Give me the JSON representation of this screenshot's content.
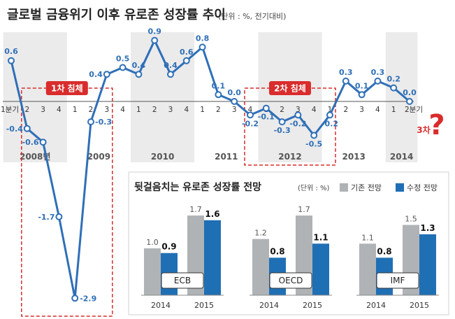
{
  "title": "글로벌 금융위기 이후 유로존 성장률 추이",
  "unit_note": "(단위 : %, 전기대비)",
  "chart_data": [
    {
      "type": "line",
      "title": "글로벌 금융위기 이후 유로존 성장률 추이",
      "unit": "(단위 : %, 전기대비)",
      "years": [
        "2008년",
        "2009",
        "2010",
        "2011",
        "2012",
        "2013",
        "2014"
      ],
      "quarter_labels": [
        "1분기",
        "2",
        "3",
        "4",
        "1",
        "2",
        "3",
        "4",
        "1",
        "2",
        "3",
        "4",
        "1",
        "2",
        "3",
        "4",
        "1",
        "2",
        "3",
        "4",
        "1",
        "2",
        "3",
        "4",
        "1",
        "2분기"
      ],
      "values": [
        0.6,
        -0.4,
        -0.6,
        -1.7,
        -2.9,
        -0.3,
        0.4,
        0.5,
        0.4,
        0.9,
        0.4,
        0.6,
        0.8,
        0.1,
        0.0,
        -0.2,
        -0.1,
        -0.3,
        -0.2,
        -0.5,
        -0.2,
        0.3,
        0.1,
        0.3,
        0.2,
        0.0
      ],
      "value_labels": [
        "0.6",
        "-0.4",
        "-0.6",
        "-1.7",
        "-2.9",
        "-0.3",
        "0.4",
        "0.5",
        "0.4",
        "0.9",
        "0.4",
        "0.6",
        "0.8",
        "0.1",
        "0.0",
        "-0.2",
        "-0.1",
        "-0.3",
        "-0.2",
        "-0.5",
        "-0.2",
        "0.3",
        "0.1",
        "0.3",
        "0.2",
        "0.0"
      ],
      "recessions": [
        {
          "label": "1차 침체",
          "start_index": 1,
          "end_index": 6
        },
        {
          "label": "2차 침체",
          "start_index": 15,
          "end_index": 20
        }
      ],
      "third_dip_label": "3차",
      "third_dip_mark": "?",
      "ylim": [
        -3.0,
        1.0
      ],
      "colors": {
        "line": "#2f6fb7",
        "marker_fill": "#ffffff",
        "shade": "#ebebeb",
        "recession": "#d92c2c"
      }
    },
    {
      "type": "bar",
      "title": "뒷걸음치는 유로존 성장률 전망",
      "unit": "(단위 : %)",
      "legend": [
        "기존 전망",
        "수정 전망"
      ],
      "categories": [
        "2014",
        "2015"
      ],
      "groups": [
        {
          "name": "ECB",
          "prior": [
            1.0,
            1.7
          ],
          "revised": [
            0.9,
            1.6
          ],
          "prior_labels": [
            "1.0",
            "1.7"
          ],
          "revised_labels": [
            "0.9",
            "1.6"
          ]
        },
        {
          "name": "OECD",
          "prior": [
            1.2,
            1.7
          ],
          "revised": [
            0.8,
            1.1
          ],
          "prior_labels": [
            "1.2",
            "1.7"
          ],
          "revised_labels": [
            "0.8",
            "1.1"
          ]
        },
        {
          "name": "IMF",
          "prior": [
            1.1,
            1.5
          ],
          "revised": [
            0.8,
            1.3
          ],
          "prior_labels": [
            "1.1",
            "1.5"
          ],
          "revised_labels": [
            "0.8",
            "1.3"
          ]
        }
      ],
      "colors": {
        "prior": "#b0b3b6",
        "revised": "#1f6fb5"
      }
    }
  ]
}
